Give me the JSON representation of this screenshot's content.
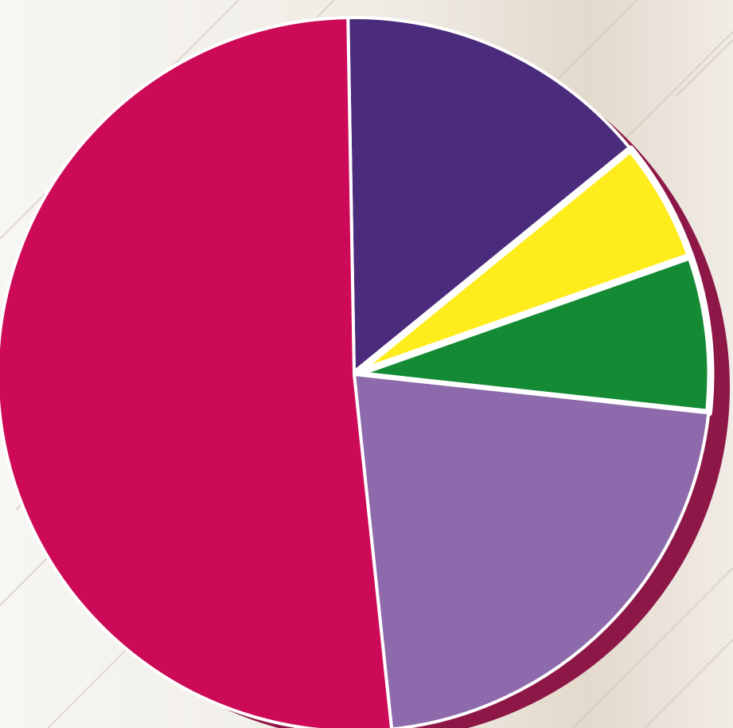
{
  "chart_data": {
    "type": "pie",
    "start_angle_deg": -1,
    "direction": "clockwise",
    "slices": [
      {
        "value": 14.4,
        "color": "#4b2b7c"
      },
      {
        "value": 5.5,
        "color": "#ffec1c"
      },
      {
        "value": 7.1,
        "color": "#158a35"
      },
      {
        "value": 21.6,
        "color": "#8c6aab"
      },
      {
        "value": 51.4,
        "color": "#cc0a57"
      }
    ],
    "separator_color": "#ffffff",
    "shadow_color": "#8d1848",
    "background_color": "#efece6"
  }
}
